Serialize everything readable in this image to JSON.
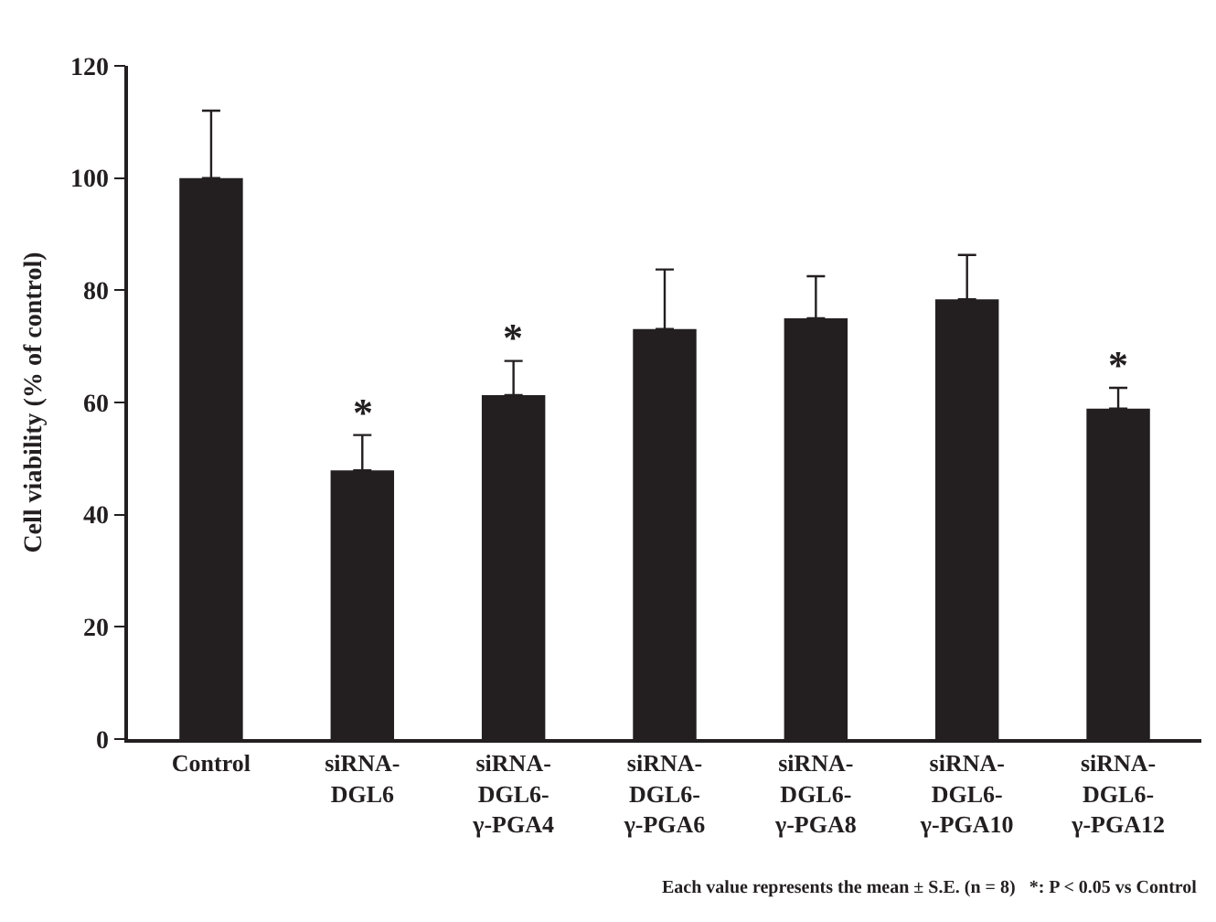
{
  "chart_data": {
    "type": "bar",
    "ylabel": "Cell viability (% of control)",
    "categories": [
      "Control",
      "siRNA-\nDGL6",
      "siRNA-\nDGL6-\nγ-PGA4",
      "siRNA-\nDGL6-\nγ-PGA6",
      "siRNA-\nDGL6-\nγ-PGA8",
      "siRNA-\nDGL6-\nγ-PGA10",
      "siRNA-\nDGL6-\nγ-PGA12"
    ],
    "values": [
      100,
      47.9,
      61.3,
      73.1,
      75,
      78.4,
      58.9
    ],
    "errors": [
      [
        100,
        112
      ],
      [
        47.9,
        54.2
      ],
      [
        61.3,
        67.4
      ],
      [
        73.1,
        83.7
      ],
      [
        75,
        82.5
      ],
      [
        78.4,
        86.3
      ],
      [
        58.9,
        62.6
      ]
    ],
    "color": "#231f20",
    "ylim": [
      0,
      120
    ],
    "yticks": [
      0,
      20,
      40,
      60,
      80,
      100,
      120
    ],
    "grid": false,
    "annotations": [
      {
        "text": "*",
        "x": "siRNA-\nDGL6",
        "y": 54.2
      },
      {
        "text": "*",
        "x": "siRNA-\nDGL6-\nγ-PGA4",
        "y": 67.4
      },
      {
        "text": "*",
        "x": "siRNA-\nDGL6-\nγ-PGA12",
        "y": 62.6
      },
      "Each value represents the mean ± S.E. (n = 8)   *: P < 0.05 vs Control"
    ]
  }
}
